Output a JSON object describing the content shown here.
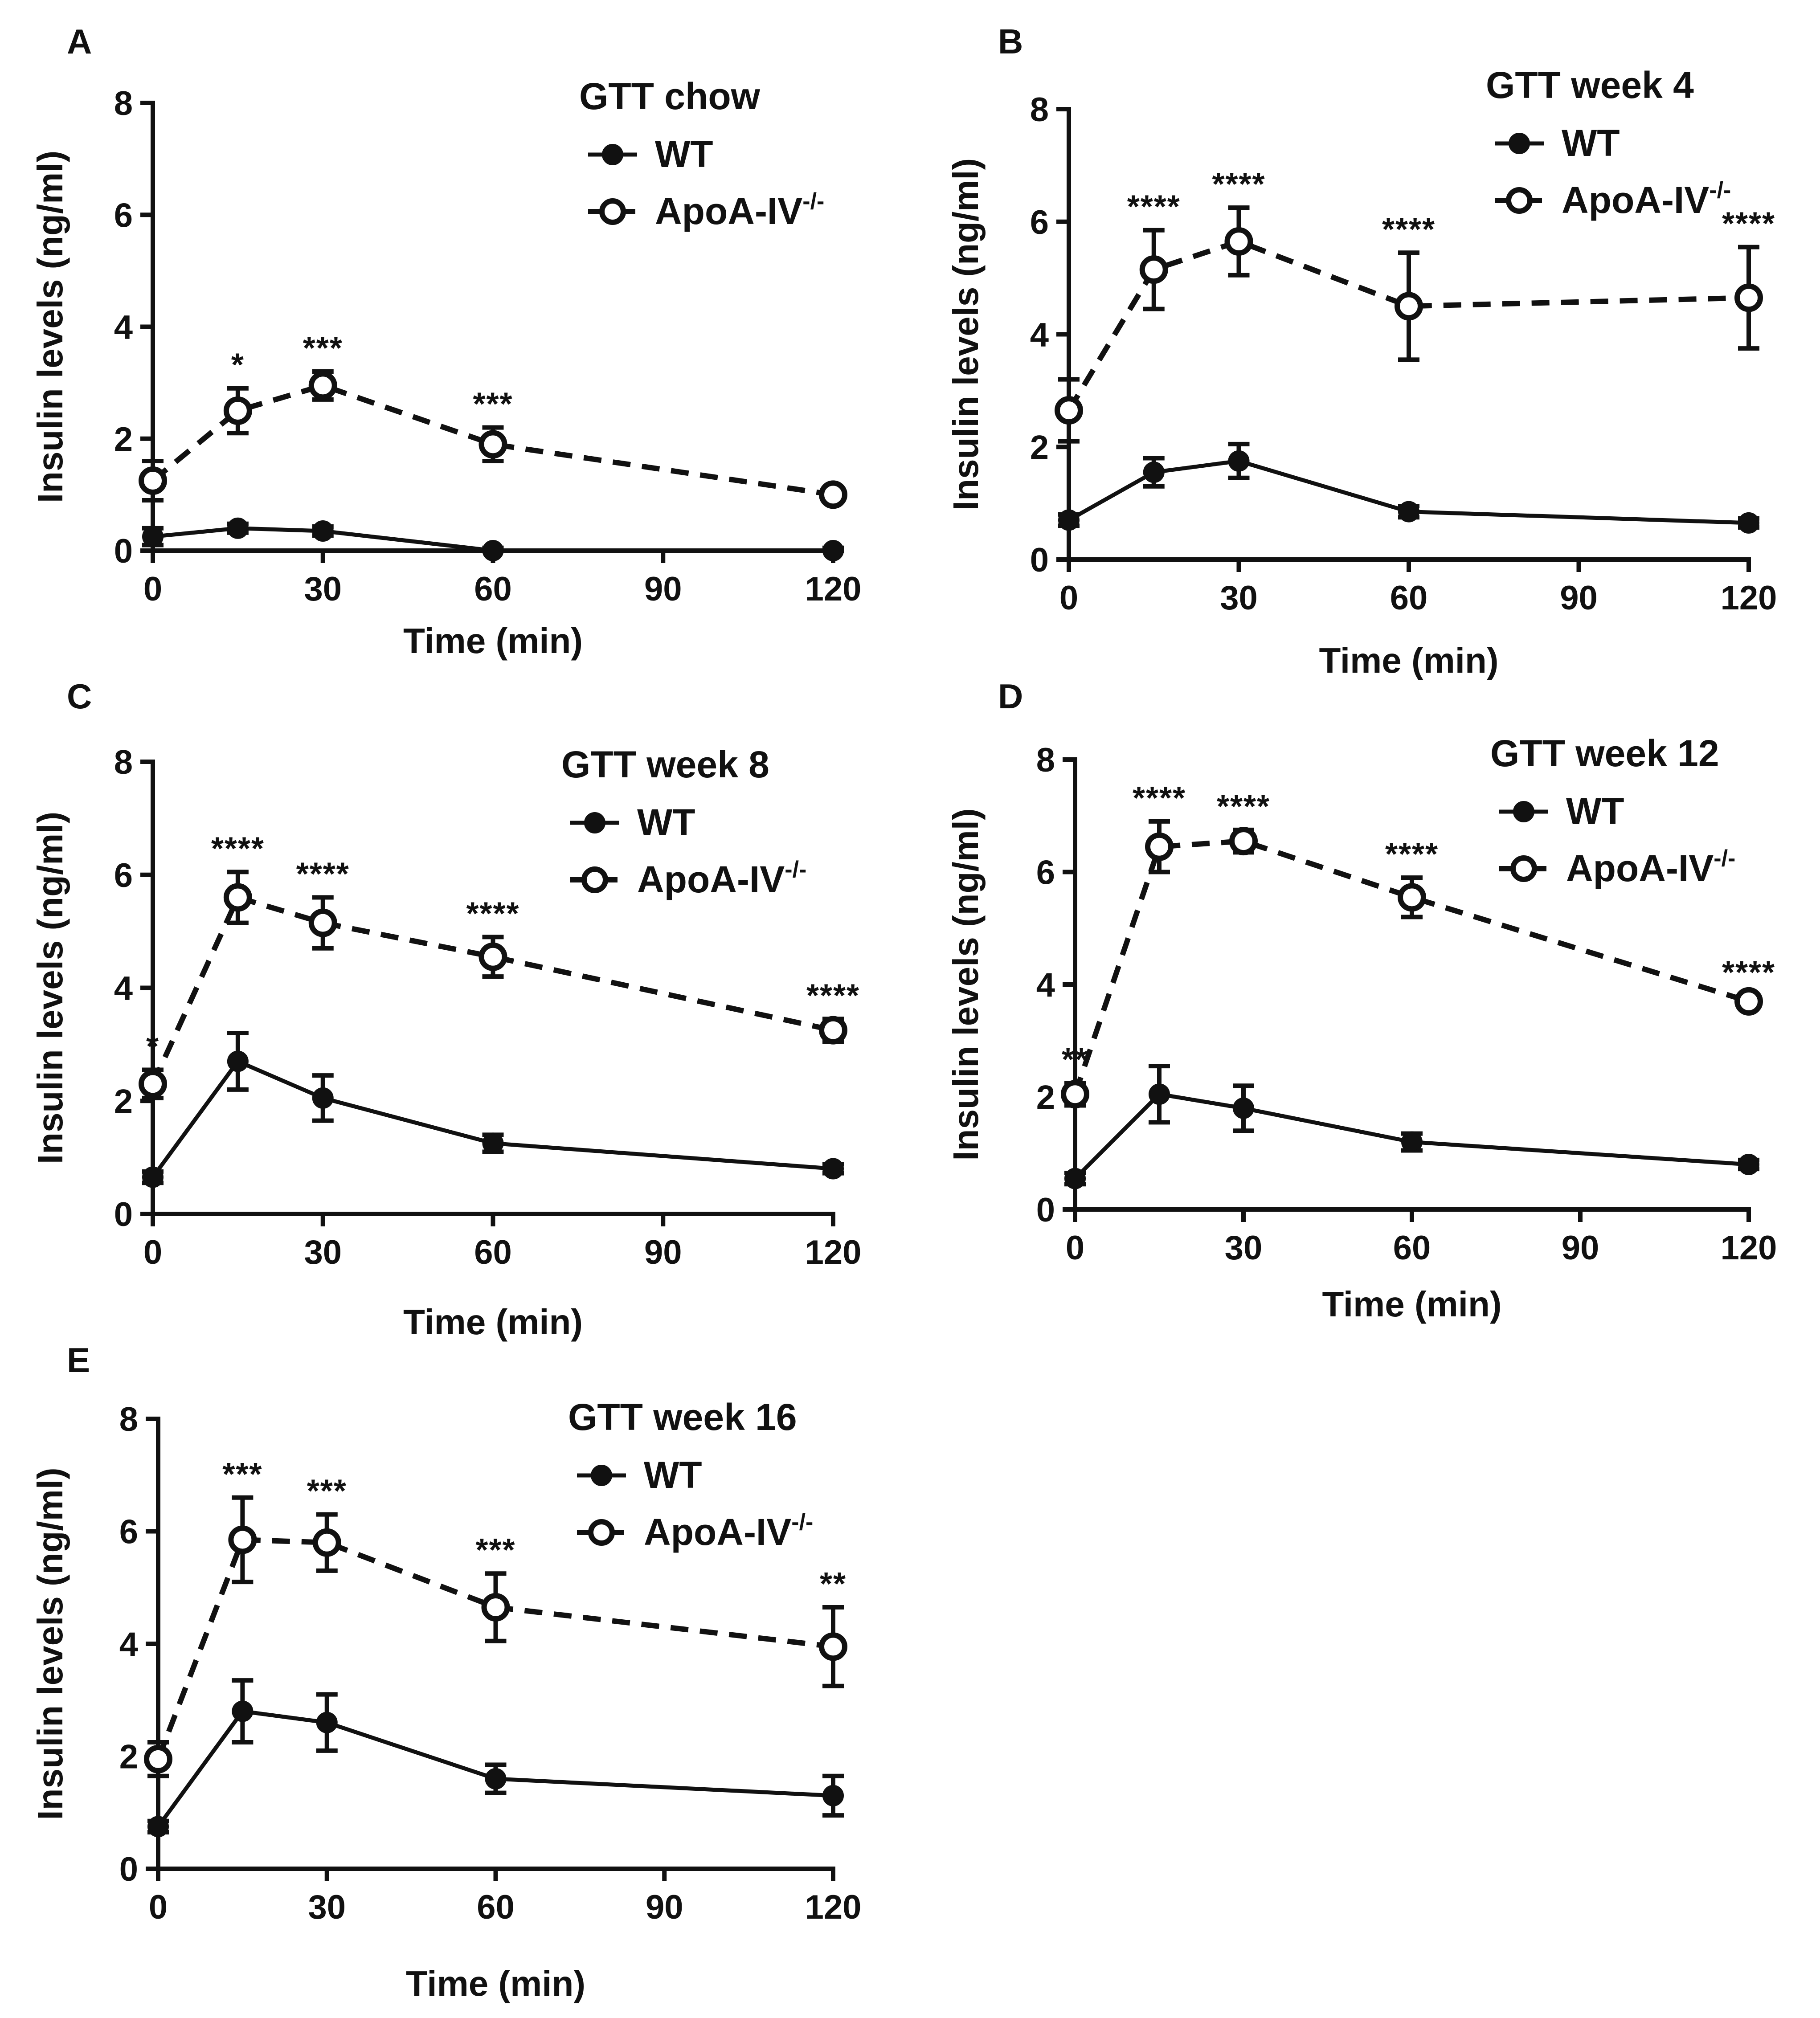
{
  "chart_data": [
    {
      "panel": "A",
      "type": "line",
      "title": "GTT chow",
      "xlabel": "Time (min)",
      "ylabel": "Insulin levels (ng/ml)",
      "xlim": [
        0,
        120
      ],
      "ylim": [
        0,
        8
      ],
      "xticks": [
        0,
        30,
        60,
        90,
        120
      ],
      "yticks": [
        0,
        2,
        4,
        6,
        8
      ],
      "legend": "top-right",
      "series": [
        {
          "name": "WT",
          "style": "solid-filled",
          "x": [
            0,
            15,
            30,
            60,
            120
          ],
          "values": [
            0.25,
            0.4,
            0.35,
            0.0,
            0.0
          ],
          "err": [
            0.15,
            0.08,
            0.08,
            0.05,
            0.05
          ]
        },
        {
          "name": "ApoA-IV",
          "name_sup": "-/-",
          "style": "dashed-open",
          "x": [
            0,
            15,
            30,
            60,
            120
          ],
          "values": [
            1.25,
            2.5,
            2.95,
            1.9,
            1.0
          ],
          "err": [
            0.35,
            0.4,
            0.25,
            0.3,
            0.1
          ]
        }
      ],
      "annotations": [
        {
          "x": 15,
          "text": "*"
        },
        {
          "x": 30,
          "text": "***"
        },
        {
          "x": 60,
          "text": "***"
        }
      ]
    },
    {
      "panel": "B",
      "type": "line",
      "title": "GTT week 4",
      "xlabel": "Time (min)",
      "ylabel": "Insulin levels (ng/ml)",
      "xlim": [
        0,
        120
      ],
      "ylim": [
        0,
        8
      ],
      "xticks": [
        0,
        30,
        60,
        90,
        120
      ],
      "yticks": [
        0,
        2,
        4,
        6,
        8
      ],
      "legend": "top-right",
      "series": [
        {
          "name": "WT",
          "style": "solid-filled",
          "x": [
            0,
            15,
            30,
            60,
            120
          ],
          "values": [
            0.7,
            1.55,
            1.75,
            0.85,
            0.65
          ],
          "err": [
            0.1,
            0.25,
            0.3,
            0.1,
            0.08
          ]
        },
        {
          "name": "ApoA-IV",
          "name_sup": "-/-",
          "style": "dashed-open",
          "x": [
            0,
            15,
            30,
            60,
            120
          ],
          "values": [
            2.65,
            5.15,
            5.65,
            4.5,
            4.65
          ],
          "err": [
            0.55,
            0.7,
            0.6,
            0.95,
            0.9
          ]
        }
      ],
      "annotations": [
        {
          "x": 15,
          "text": "****"
        },
        {
          "x": 30,
          "text": "****"
        },
        {
          "x": 60,
          "text": "****"
        },
        {
          "x": 120,
          "text": "****"
        }
      ]
    },
    {
      "panel": "C",
      "type": "line",
      "title": "GTT week 8",
      "xlabel": "Time (min)",
      "ylabel": "Insulin levels (ng/ml)",
      "xlim": [
        0,
        120
      ],
      "ylim": [
        0,
        8
      ],
      "xticks": [
        0,
        30,
        60,
        90,
        120
      ],
      "yticks": [
        0,
        2,
        4,
        6,
        8
      ],
      "legend": "top-right",
      "series": [
        {
          "name": "WT",
          "style": "solid-filled",
          "x": [
            0,
            15,
            30,
            60,
            120
          ],
          "values": [
            0.65,
            2.7,
            2.05,
            1.25,
            0.8
          ],
          "err": [
            0.1,
            0.5,
            0.4,
            0.15,
            0.08
          ]
        },
        {
          "name": "ApoA-IV",
          "name_sup": "-/-",
          "style": "dashed-open",
          "x": [
            0,
            15,
            30,
            60,
            120
          ],
          "values": [
            2.3,
            5.6,
            5.15,
            4.55,
            3.25
          ],
          "err": [
            0.25,
            0.45,
            0.45,
            0.35,
            0.2
          ]
        }
      ],
      "annotations": [
        {
          "x": 0,
          "text": "*"
        },
        {
          "x": 15,
          "text": "****"
        },
        {
          "x": 30,
          "text": "****"
        },
        {
          "x": 60,
          "text": "****"
        },
        {
          "x": 120,
          "text": "****"
        }
      ]
    },
    {
      "panel": "D",
      "type": "line",
      "title": "GTT week 12",
      "xlabel": "Time (min)",
      "ylabel": "Insulin levels (ng/ml)",
      "xlim": [
        0,
        120
      ],
      "ylim": [
        0,
        8
      ],
      "xticks": [
        0,
        30,
        60,
        90,
        120
      ],
      "yticks": [
        0,
        2,
        4,
        6,
        8
      ],
      "legend": "top-right",
      "series": [
        {
          "name": "WT",
          "style": "solid-filled",
          "x": [
            0,
            15,
            30,
            60,
            120
          ],
          "values": [
            0.55,
            2.05,
            1.8,
            1.2,
            0.8
          ],
          "err": [
            0.1,
            0.5,
            0.4,
            0.15,
            0.08
          ]
        },
        {
          "name": "ApoA-IV",
          "name_sup": "-/-",
          "style": "dashed-open",
          "x": [
            0,
            15,
            30,
            60,
            120
          ],
          "values": [
            2.05,
            6.45,
            6.55,
            5.55,
            3.7
          ],
          "err": [
            0.2,
            0.45,
            0.2,
            0.35,
            0.1
          ]
        }
      ],
      "annotations": [
        {
          "x": 0,
          "text": "**"
        },
        {
          "x": 15,
          "text": "****"
        },
        {
          "x": 30,
          "text": "****"
        },
        {
          "x": 60,
          "text": "****"
        },
        {
          "x": 120,
          "text": "****"
        }
      ]
    },
    {
      "panel": "E",
      "type": "line",
      "title": "GTT week 16",
      "xlabel": "Time (min)",
      "ylabel": "Insulin levels (ng/ml)",
      "xlim": [
        0,
        120
      ],
      "ylim": [
        0,
        8
      ],
      "xticks": [
        0,
        30,
        60,
        90,
        120
      ],
      "yticks": [
        0,
        2,
        4,
        6,
        8
      ],
      "legend": "top-right",
      "series": [
        {
          "name": "WT",
          "style": "solid-filled",
          "x": [
            0,
            15,
            30,
            60,
            120
          ],
          "values": [
            0.75,
            2.8,
            2.6,
            1.6,
            1.3
          ],
          "err": [
            0.1,
            0.55,
            0.5,
            0.25,
            0.35
          ]
        },
        {
          "name": "ApoA-IV",
          "name_sup": "-/-",
          "style": "dashed-open",
          "x": [
            0,
            15,
            30,
            60,
            120
          ],
          "values": [
            1.95,
            5.85,
            5.8,
            4.65,
            3.95
          ],
          "err": [
            0.3,
            0.75,
            0.5,
            0.6,
            0.7
          ]
        }
      ],
      "annotations": [
        {
          "x": 15,
          "text": "***"
        },
        {
          "x": 30,
          "text": "***"
        },
        {
          "x": 60,
          "text": "***"
        },
        {
          "x": 120,
          "text": "**"
        }
      ]
    }
  ]
}
